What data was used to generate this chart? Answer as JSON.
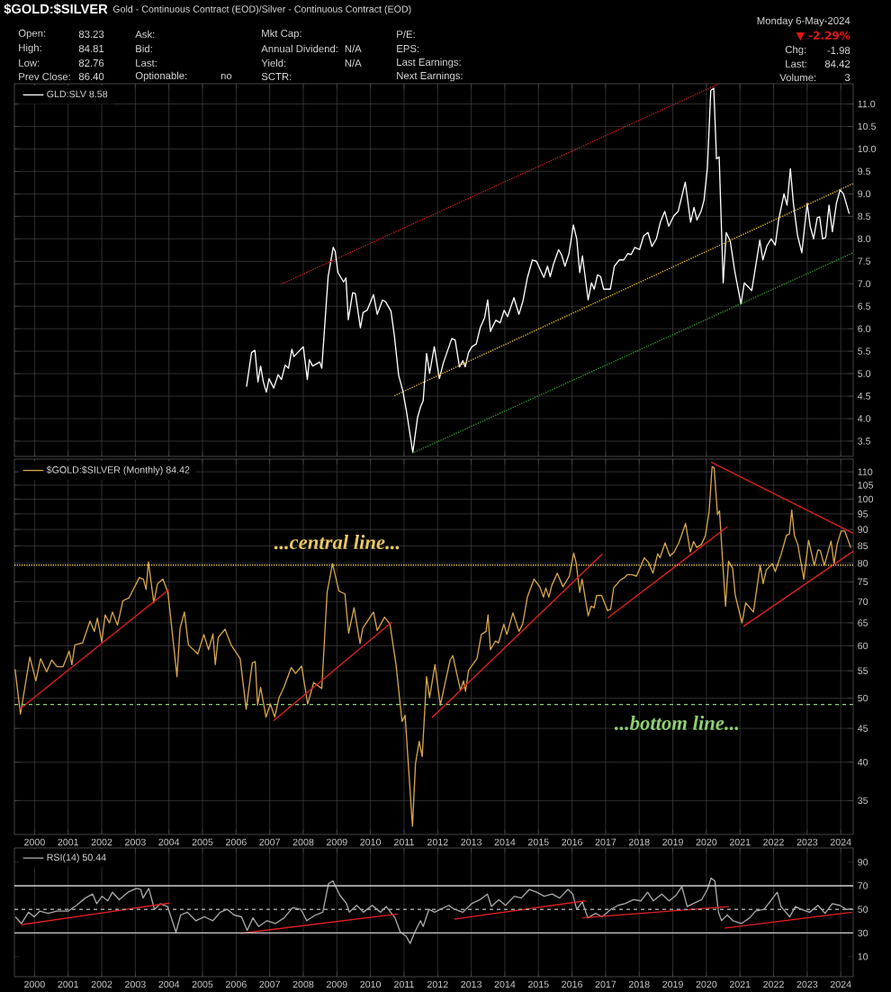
{
  "chart_data": [
    {
      "type": "line",
      "title": "$GOLD:$SILVER",
      "subtitle": "Gold - Continuous Contract (EOD)/Silver - Continuous Contract (EOD)",
      "annotations": [
        "Open:",
        "83.23",
        "High:",
        "84.81",
        "Low:",
        "82.76",
        "Prev Close:",
        "86.40",
        "Ask:",
        "Bid:",
        "Last:",
        "Optionable:",
        "no",
        "Mkt Cap:",
        "Annual Dividend:",
        "N/A",
        "Yield:",
        "N/A",
        "SCTR:",
        "P/E:",
        "EPS:",
        "Last Earnings:",
        "Next Earnings:",
        "Monday 6-May-2024",
        "▼ -2.29%",
        "Chg:",
        "-1.98",
        "Last:",
        "84.42",
        "Volume:",
        "3"
      ],
      "xlim": [
        1999.4,
        2024.37
      ],
      "xticks": [
        2000,
        2001,
        2002,
        2003,
        2004,
        2005,
        2006,
        2007,
        2008,
        2009,
        2010,
        2011,
        2012,
        2013,
        2014,
        2015,
        2016,
        2017,
        2018,
        2019,
        2020,
        2021,
        2022,
        2023,
        2024
      ],
      "ylim": [
        3.16,
        11.45
      ],
      "yticks": [
        3.5,
        {
          "value": 4,
          "label": "4.0"
        },
        4.5,
        {
          "value": 5,
          "label": "5.0"
        },
        5.5,
        {
          "value": 6,
          "label": "6.0"
        },
        6.5,
        {
          "value": 7,
          "label": "7.0"
        },
        7.5,
        {
          "value": 8,
          "label": "8.0"
        },
        8.5,
        {
          "value": 9,
          "label": "9.0"
        },
        9.5,
        {
          "value": 10,
          "label": "10.0"
        },
        10.5,
        {
          "value": 11,
          "label": "11.0"
        }
      ],
      "grid": true,
      "legend": "top left",
      "tick_labels": "y",
      "series": [
        {
          "name": "GLD:SLV 8.58",
          "color": "#ffffff",
          "x": [
            2006.31,
            2006.46,
            2006.56,
            2006.65,
            2006.73,
            2006.81,
            2006.9,
            2006.98,
            2007.12,
            2007.25,
            2007.35,
            2007.46,
            2007.56,
            2007.66,
            2007.72,
            2008.0,
            2008.12,
            2008.18,
            2008.28,
            2008.49,
            2008.55,
            2008.74,
            2008.89,
            2008.95,
            2009.03,
            2009.2,
            2009.27,
            2009.34,
            2009.47,
            2009.55,
            2009.7,
            2009.78,
            2009.9,
            2010.09,
            2010.2,
            2010.36,
            2010.45,
            2010.61,
            2010.71,
            2010.84,
            2010.96,
            2011.07,
            2011.26,
            2011.4,
            2011.49,
            2011.57,
            2011.67,
            2011.76,
            2011.9,
            2012.05,
            2012.17,
            2012.42,
            2012.52,
            2012.65,
            2012.75,
            2012.82,
            2012.92,
            2013.02,
            2013.15,
            2013.27,
            2013.4,
            2013.49,
            2013.57,
            2013.73,
            2013.86,
            2013.98,
            2014.08,
            2014.27,
            2014.42,
            2014.54,
            2014.67,
            2014.82,
            2014.94,
            2015.16,
            2015.27,
            2015.35,
            2015.45,
            2015.6,
            2015.69,
            2015.79,
            2015.91,
            2016.04,
            2016.14,
            2016.23,
            2016.31,
            2016.48,
            2016.58,
            2016.66,
            2016.76,
            2016.85,
            2016.94,
            2017.14,
            2017.26,
            2017.41,
            2017.54,
            2017.66,
            2017.76,
            2017.87,
            2018.01,
            2018.13,
            2018.26,
            2018.38,
            2018.51,
            2018.63,
            2018.76,
            2018.88,
            2019.03,
            2019.16,
            2019.37,
            2019.53,
            2019.63,
            2019.72,
            2019.84,
            2019.93,
            2020.03,
            2020.13,
            2020.22,
            2020.3,
            2020.38,
            2020.5,
            2020.59,
            2020.71,
            2020.85,
            2021.03,
            2021.13,
            2021.35,
            2021.59,
            2021.68,
            2021.8,
            2021.93,
            2022.05,
            2022.15,
            2022.31,
            2022.4,
            2022.5,
            2022.59,
            2022.71,
            2022.84,
            2023.0,
            2023.09,
            2023.19,
            2023.3,
            2023.37,
            2023.46,
            2023.55,
            2023.65,
            2023.75,
            2023.87,
            2023.98,
            2024.08,
            2024.25
          ],
          "values": [
            4.71,
            5.47,
            5.52,
            4.82,
            5.17,
            4.82,
            4.59,
            4.89,
            4.68,
            4.98,
            4.87,
            5.19,
            5.12,
            5.54,
            5.38,
            5.6,
            4.87,
            5.31,
            5.17,
            5.26,
            5.12,
            7.16,
            7.81,
            7.72,
            7.25,
            7.04,
            7.13,
            6.2,
            6.8,
            6.78,
            6.02,
            6.36,
            6.41,
            6.76,
            6.32,
            6.64,
            6.6,
            6.39,
            5.85,
            4.96,
            4.63,
            4.17,
            3.25,
            4.02,
            4.26,
            4.4,
            5.45,
            5.01,
            5.6,
            4.89,
            5.24,
            5.78,
            5.75,
            5.15,
            5.29,
            5.15,
            5.47,
            5.6,
            5.66,
            6.03,
            6.25,
            6.64,
            5.94,
            6.19,
            6.13,
            6.41,
            6.27,
            6.69,
            6.32,
            6.62,
            7.13,
            7.53,
            7.5,
            7.14,
            7.39,
            7.16,
            7.44,
            7.76,
            7.64,
            7.39,
            7.67,
            8.31,
            8.0,
            7.25,
            7.62,
            6.64,
            7.02,
            6.88,
            7.2,
            7.16,
            6.88,
            6.88,
            7.39,
            7.53,
            7.53,
            7.67,
            7.65,
            7.81,
            7.76,
            8.06,
            8.14,
            7.83,
            8.0,
            8.37,
            8.61,
            8.28,
            8.51,
            8.61,
            9.26,
            8.37,
            8.7,
            8.42,
            8.61,
            8.86,
            9.59,
            11.3,
            11.35,
            9.78,
            9.82,
            7.02,
            8.14,
            7.95,
            7.25,
            6.55,
            7.02,
            6.85,
            7.97,
            7.53,
            7.84,
            8.0,
            7.86,
            8.42,
            9.0,
            8.75,
            9.56,
            8.79,
            8.09,
            7.69,
            8.79,
            8.28,
            8.0,
            8.47,
            8.49,
            8.0,
            8.03,
            8.75,
            8.16,
            8.79,
            9.09,
            9.0,
            8.56
          ]
        },
        {
          "type": "line",
          "color": "#cc2222",
          "line_style": "dotted",
          "x": [
            2007.37,
            2020.38
          ],
          "values": [
            7.0,
            11.45
          ]
        },
        {
          "type": "line",
          "color": "#f0c030",
          "line_style": "dotted",
          "x": [
            2010.71,
            2024.37
          ],
          "values": [
            4.51,
            9.23
          ]
        },
        {
          "type": "line",
          "color": "#2ea02e",
          "line_style": "dotted",
          "x": [
            2011.24,
            2024.37
          ],
          "values": [
            3.23,
            7.69
          ]
        }
      ]
    },
    {
      "type": "line",
      "xlim": [
        1999.4,
        2024.37
      ],
      "xticks": [
        2000,
        2001,
        2002,
        2003,
        2004,
        2005,
        2006,
        2007,
        2008,
        2009,
        2010,
        2011,
        2012,
        2013,
        2014,
        2015,
        2016,
        2017,
        2018,
        2019,
        2020,
        2021,
        2022,
        2023,
        2024
      ],
      "ylim": [
        31.1,
        115
      ],
      "yticks": [
        35,
        40,
        45,
        50,
        55,
        60,
        65,
        70,
        75,
        80,
        85,
        90,
        95,
        100,
        105,
        110
      ],
      "log": "y",
      "grid": true,
      "legend": "top left",
      "ref_lines": [
        {
          "axis": "y",
          "value": 79.5,
          "label": "...central line...",
          "color": "#e8c860",
          "line_style": "dotted"
        },
        {
          "axis": "y",
          "value": 48.9,
          "label": "...bottom line...",
          "color": "#8fd070",
          "line_style": "dashed"
        }
      ],
      "series": [
        {
          "name": "$GOLD:$SILVER (Monthly) 84.42",
          "color": "#d4a54a",
          "x": [
            1999.42,
            1999.58,
            1999.86,
            2000.04,
            2000.18,
            2000.36,
            2000.51,
            2000.67,
            2000.85,
            2001.03,
            2001.11,
            2001.2,
            2001.43,
            2001.65,
            2001.78,
            2001.87,
            2002.0,
            2002.1,
            2002.23,
            2002.32,
            2002.47,
            2002.63,
            2002.81,
            2003.12,
            2003.24,
            2003.32,
            2003.39,
            2003.55,
            2003.66,
            2003.82,
            2003.97,
            2004.24,
            2004.33,
            2004.46,
            2004.58,
            2004.86,
            2005.04,
            2005.18,
            2005.31,
            2005.38,
            2005.47,
            2005.67,
            2005.85,
            2006.12,
            2006.3,
            2006.48,
            2006.57,
            2006.64,
            2006.73,
            2006.89,
            2007.02,
            2007.15,
            2007.28,
            2007.42,
            2007.64,
            2007.77,
            2007.95,
            2008.13,
            2008.31,
            2008.55,
            2008.71,
            2008.87,
            2009.06,
            2009.24,
            2009.35,
            2009.51,
            2009.69,
            2009.77,
            2010.09,
            2010.2,
            2010.42,
            2010.58,
            2010.76,
            2010.94,
            2011.03,
            2011.25,
            2011.34,
            2011.45,
            2011.54,
            2011.67,
            2011.76,
            2011.92,
            2012.08,
            2012.37,
            2012.45,
            2012.68,
            2012.77,
            2012.83,
            2012.92,
            2013.17,
            2013.3,
            2013.44,
            2013.5,
            2013.57,
            2013.72,
            2013.81,
            2013.97,
            2014.06,
            2014.24,
            2014.42,
            2014.53,
            2014.67,
            2014.87,
            2015.04,
            2015.15,
            2015.22,
            2015.31,
            2015.4,
            2015.56,
            2015.73,
            2015.92,
            2016.05,
            2016.12,
            2016.23,
            2016.3,
            2016.48,
            2016.57,
            2016.66,
            2016.73,
            2016.88,
            2017.06,
            2017.15,
            2017.24,
            2017.42,
            2017.56,
            2017.65,
            2017.78,
            2017.92,
            2018.15,
            2018.28,
            2018.41,
            2018.55,
            2018.62,
            2018.77,
            2018.91,
            2019.04,
            2019.18,
            2019.38,
            2019.52,
            2019.62,
            2019.71,
            2019.85,
            2019.97,
            2020.08,
            2020.17,
            2020.23,
            2020.33,
            2020.39,
            2020.48,
            2020.57,
            2020.66,
            2020.78,
            2020.86,
            2021.06,
            2021.17,
            2021.4,
            2021.6,
            2021.69,
            2021.78,
            2021.96,
            2022.05,
            2022.23,
            2022.38,
            2022.47,
            2022.54,
            2022.62,
            2022.72,
            2022.9,
            2023.04,
            2023.12,
            2023.21,
            2023.32,
            2023.39,
            2023.51,
            2023.71,
            2023.8,
            2023.89,
            2024.01,
            2024.12,
            2024.3
          ],
          "values": [
            55.3,
            47.3,
            57.7,
            53.1,
            57.4,
            54.8,
            57.1,
            55.8,
            55.8,
            58.9,
            56.2,
            60.2,
            60.6,
            65.4,
            63.1,
            66.1,
            60.8,
            66.8,
            65.0,
            67.5,
            64.5,
            70.2,
            70.9,
            76.1,
            75.7,
            73.0,
            80.4,
            69.7,
            74.5,
            75.7,
            72.3,
            53.9,
            63.7,
            67.5,
            60.2,
            58.3,
            62.4,
            59.2,
            62.5,
            56.2,
            61.8,
            63.6,
            60.2,
            57.4,
            48.1,
            56.5,
            56.8,
            48.8,
            51.9,
            46.8,
            49.0,
            46.8,
            50.1,
            51.9,
            55.6,
            54.5,
            55.9,
            49.0,
            52.8,
            51.7,
            72.3,
            79.9,
            72.6,
            71.9,
            62.7,
            68.5,
            60.5,
            63.8,
            67.5,
            63.3,
            66.3,
            64.7,
            56.2,
            46.1,
            47.1,
            32.0,
            39.8,
            43.0,
            40.8,
            53.9,
            50.1,
            56.2,
            48.8,
            57.1,
            58.0,
            51.4,
            53.1,
            51.2,
            55.1,
            57.4,
            62.4,
            63.1,
            66.8,
            59.2,
            61.0,
            60.6,
            64.7,
            62.4,
            67.3,
            63.1,
            64.7,
            71.1,
            75.7,
            73.7,
            71.1,
            73.4,
            71.1,
            74.1,
            77.3,
            73.7,
            76.5,
            82.9,
            80.2,
            72.3,
            75.7,
            66.6,
            68.9,
            68.5,
            71.5,
            71.5,
            67.8,
            68.2,
            73.4,
            75.3,
            76.1,
            76.9,
            76.9,
            76.5,
            81.5,
            80.2,
            77.3,
            82.7,
            81.5,
            85.9,
            82.0,
            83.2,
            85.9,
            91.9,
            83.2,
            86.3,
            84.5,
            85.4,
            88.1,
            95.7,
            112,
            111.5,
            94.8,
            96.0,
            81.0,
            68.9,
            80.6,
            78.6,
            71.5,
            65.0,
            69.7,
            67.5,
            79.4,
            74.5,
            78.1,
            79.9,
            77.7,
            82.7,
            88.1,
            88.6,
            96.3,
            88.1,
            85.4,
            75.7,
            86.7,
            83.2,
            79.4,
            83.8,
            83.6,
            79.4,
            86.4,
            79.9,
            85.4,
            89.5,
            89.5,
            84.4
          ]
        },
        {
          "type": "line",
          "color": "#e02020",
          "x": [
            1999.55,
            2004.0
          ],
          "values": [
            48.1,
            73.0
          ]
        },
        {
          "type": "line",
          "color": "#e02020",
          "x": [
            2007.11,
            2010.64
          ],
          "values": [
            46.2,
            65.2
          ]
        },
        {
          "type": "line",
          "color": "#e02020",
          "x": [
            2011.83,
            2016.9
          ],
          "values": [
            46.7,
            82.6
          ]
        },
        {
          "type": "line",
          "color": "#e02020",
          "x": [
            2017.06,
            2020.63
          ],
          "values": [
            66.1,
            90.9
          ]
        },
        {
          "type": "line",
          "color": "#e02020",
          "x": [
            2020.14,
            2024.37
          ],
          "values": [
            113.8,
            88.8
          ]
        },
        {
          "type": "line",
          "color": "#e02020",
          "x": [
            2021.1,
            2024.37
          ],
          "values": [
            64.2,
            83.4
          ]
        }
      ]
    },
    {
      "type": "line",
      "xlim": [
        1999.4,
        2024.37
      ],
      "xticks": [
        2000,
        2001,
        2002,
        2003,
        2004,
        2005,
        2006,
        2007,
        2008,
        2009,
        2010,
        2011,
        2012,
        2013,
        2014,
        2015,
        2016,
        2017,
        2018,
        2019,
        2020,
        2021,
        2022,
        2023,
        2024
      ],
      "ylim": [
        -7,
        102
      ],
      "yticks": [
        10,
        30,
        50,
        70,
        90
      ],
      "grid": "x",
      "legend": "top left",
      "ref_lines": [
        {
          "axis": "y",
          "value": 70,
          "color": "#d0d0d0",
          "line_style": "solid"
        },
        {
          "axis": "y",
          "value": 50,
          "color": "#a0a0a0",
          "line_style": "dashed"
        },
        {
          "axis": "y",
          "value": 30,
          "color": "#d0d0d0",
          "line_style": "solid"
        }
      ],
      "series": [
        {
          "name": "RSI(14) 50.44",
          "color": "#a8a8a8",
          "x": [
            1999.43,
            1999.61,
            1999.82,
            1999.99,
            2000.15,
            2000.41,
            2000.66,
            2001.0,
            2001.25,
            2001.51,
            2001.73,
            2001.85,
            2002.01,
            2002.18,
            2002.32,
            2002.52,
            2002.78,
            2003.03,
            2003.16,
            2003.23,
            2003.4,
            2003.57,
            2003.74,
            2003.96,
            2004.21,
            2004.35,
            2004.55,
            2004.8,
            2005.06,
            2005.31,
            2005.53,
            2005.74,
            2005.94,
            2006.16,
            2006.33,
            2006.5,
            2006.67,
            2006.92,
            2007.17,
            2007.43,
            2007.68,
            2007.93,
            2008.1,
            2008.36,
            2008.58,
            2008.75,
            2008.88,
            2009.09,
            2009.29,
            2009.37,
            2009.59,
            2009.79,
            2010.05,
            2010.3,
            2010.47,
            2010.73,
            2010.89,
            2011.06,
            2011.18,
            2011.32,
            2011.49,
            2011.57,
            2011.74,
            2011.91,
            2012.08,
            2012.33,
            2012.5,
            2012.75,
            2013.01,
            2013.26,
            2013.48,
            2013.6,
            2013.82,
            2014.02,
            2014.28,
            2014.49,
            2014.73,
            2014.95,
            2015.17,
            2015.41,
            2015.63,
            2015.88,
            2016.02,
            2016.14,
            2016.31,
            2016.47,
            2016.7,
            2016.9,
            2017.15,
            2017.37,
            2017.57,
            2017.83,
            2018.05,
            2018.25,
            2018.42,
            2018.67,
            2018.89,
            2019.1,
            2019.27,
            2019.43,
            2019.6,
            2019.86,
            2020.03,
            2020.14,
            2020.25,
            2020.36,
            2020.45,
            2020.62,
            2020.79,
            2021.04,
            2021.29,
            2021.46,
            2021.72,
            2021.94,
            2022.11,
            2022.22,
            2022.48,
            2022.65,
            2022.82,
            2023.07,
            2023.32,
            2023.53,
            2023.75,
            2023.97,
            2024.17,
            2024.34
          ],
          "values": [
            43.7,
            38,
            47.6,
            43.7,
            48.5,
            46.6,
            48.5,
            48.5,
            53.4,
            59.6,
            63,
            54.8,
            61.1,
            57.2,
            64.5,
            58.2,
            64.5,
            67.8,
            66.9,
            59.6,
            67.8,
            50,
            54.8,
            52.4,
            30.7,
            45.2,
            47.6,
            40.4,
            43.7,
            40.4,
            47.6,
            50,
            45.2,
            43.7,
            32.2,
            42.8,
            35.5,
            40.4,
            38,
            42.8,
            51.4,
            50,
            40.4,
            45.2,
            47.6,
            71.7,
            74.1,
            62,
            54.8,
            47.6,
            53.4,
            47.6,
            53.4,
            47.6,
            52.4,
            42.8,
            30.7,
            27.3,
            21.1,
            30.7,
            40.4,
            35.5,
            50,
            47.6,
            50,
            53.4,
            50,
            47.6,
            54.8,
            58.2,
            63,
            52.4,
            58.2,
            53.4,
            61.1,
            59.6,
            66.9,
            64.5,
            61.1,
            63,
            59.6,
            66.9,
            63,
            50,
            56.3,
            42.8,
            46.6,
            43.7,
            50,
            53.4,
            54.8,
            58.2,
            57.2,
            64.5,
            57.2,
            63,
            57.2,
            62,
            69.3,
            52.4,
            54.8,
            58.2,
            66.9,
            76.5,
            74.1,
            47.6,
            40.4,
            45.2,
            40.4,
            38,
            42.8,
            48.5,
            50,
            58.2,
            64.5,
            52.4,
            43.7,
            52.4,
            50,
            47.6,
            53.4,
            46.6,
            54.8,
            53.4,
            50,
            50.4
          ]
        },
        {
          "type": "line",
          "color": "#e02020",
          "x": [
            1999.61,
            2004.01
          ],
          "values": [
            37,
            55.3
          ]
        },
        {
          "type": "line",
          "color": "#e02020",
          "x": [
            2006.16,
            2010.81
          ],
          "values": [
            29.8,
            46.1
          ]
        },
        {
          "type": "line",
          "color": "#e02020",
          "x": [
            2012.5,
            2016.39
          ],
          "values": [
            41.8,
            57.2
          ]
        },
        {
          "type": "line",
          "color": "#e02020",
          "x": [
            2016.31,
            2020.67
          ],
          "values": [
            42.8,
            52.4
          ]
        },
        {
          "type": "line",
          "color": "#e02020",
          "x": [
            2020.53,
            2024.34
          ],
          "values": [
            34.1,
            47.6
          ]
        }
      ]
    }
  ]
}
